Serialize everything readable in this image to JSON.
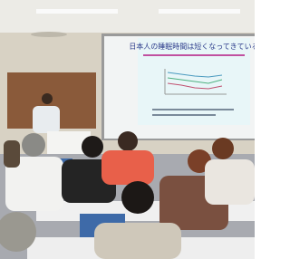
{
  "slide": {
    "title": "日本人の睡眠時間は短くなってきている"
  }
}
